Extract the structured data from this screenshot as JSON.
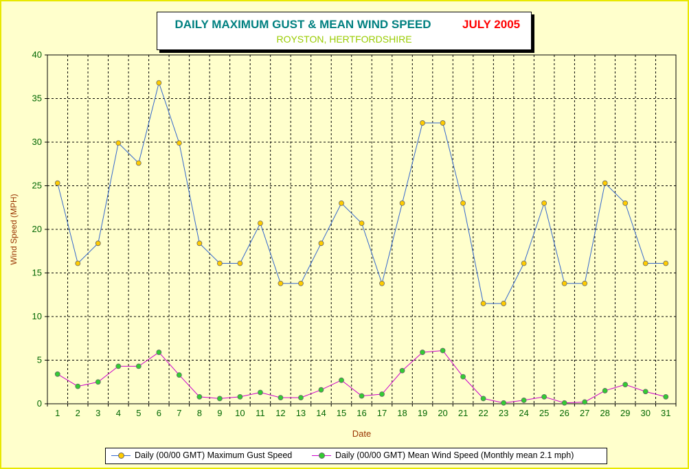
{
  "title": "DAILY MAXIMUM GUST & MEAN WIND SPEED",
  "date_label": "JULY 2005",
  "subtitle": "ROYSTON, HERTFORDSHIRE",
  "colors": {
    "gust_line": "#3366cc",
    "gust_marker": "#ffcc00",
    "mean_line": "#cc00cc",
    "mean_marker": "#33cc33",
    "title_main": "#008080",
    "title_date": "#ff0000",
    "subtitle": "#99cc00",
    "axis_text": "#006600",
    "axis_title": "#993300"
  },
  "chart_data": {
    "type": "line",
    "xlabel": "Date",
    "ylabel": "Wind Speed (MPH)",
    "ylim": [
      0,
      40
    ],
    "ytick_step": 5,
    "grid": true,
    "legend_position": "bottom",
    "x": [
      1,
      2,
      3,
      4,
      5,
      6,
      7,
      8,
      9,
      10,
      11,
      12,
      13,
      14,
      15,
      16,
      17,
      18,
      19,
      20,
      21,
      22,
      23,
      24,
      25,
      26,
      27,
      28,
      29,
      30,
      31
    ],
    "series": [
      {
        "name": "Daily (00/00 GMT) Maximum Gust Speed",
        "values": [
          25.3,
          16.1,
          18.4,
          29.9,
          27.6,
          36.8,
          29.9,
          18.4,
          16.1,
          16.1,
          20.7,
          13.8,
          13.8,
          18.4,
          23.0,
          20.7,
          13.8,
          23.0,
          32.2,
          32.2,
          23.0,
          11.5,
          11.5,
          16.1,
          23.0,
          13.8,
          13.8,
          25.3,
          23.0,
          16.1,
          16.1
        ]
      },
      {
        "name": "Daily (00/00 GMT) Mean Wind Speed (Monthly mean 2.1 mph)",
        "values": [
          3.4,
          2.0,
          2.5,
          4.3,
          4.3,
          5.9,
          3.3,
          0.8,
          0.6,
          0.8,
          1.3,
          0.7,
          0.7,
          1.6,
          2.7,
          0.9,
          1.1,
          3.8,
          5.9,
          6.1,
          3.1,
          0.6,
          0.1,
          0.4,
          0.8,
          0.1,
          0.2,
          1.5,
          2.2,
          1.4,
          0.8
        ]
      }
    ]
  }
}
